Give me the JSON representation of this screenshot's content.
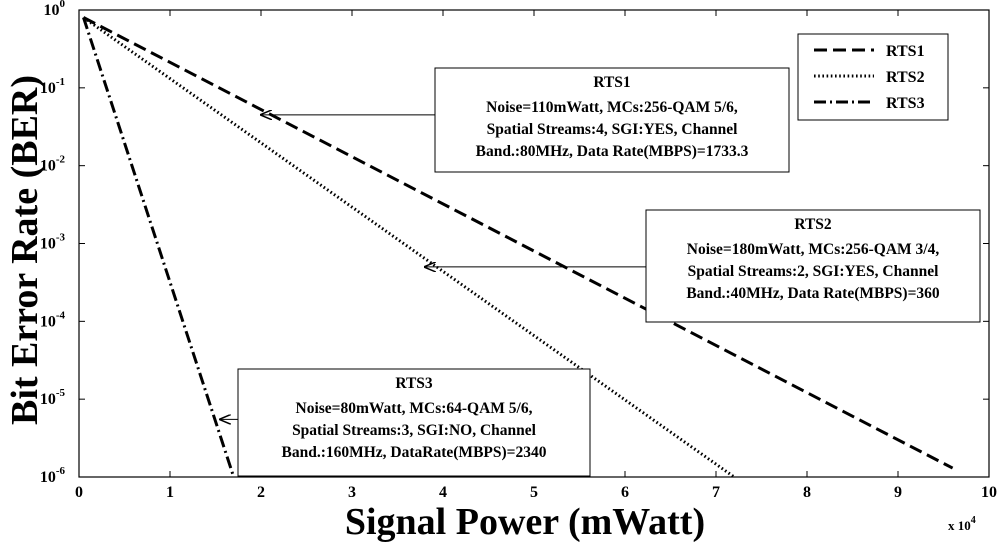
{
  "chart_data": {
    "type": "line",
    "xlabel": "Signal Power (mWatt)",
    "ylabel": "Bit Error Rate (BER)",
    "x_multiplier_label": "x 10",
    "x_multiplier_exponent": "4",
    "xlim": [
      0,
      100000
    ],
    "ylim": [
      1e-06,
      1
    ],
    "y_scale": "log",
    "grid": false,
    "legend_position": "top-right",
    "x_ticks": [
      {
        "value": 0,
        "label": "0"
      },
      {
        "value": 10000,
        "label": "1"
      },
      {
        "value": 20000,
        "label": "2"
      },
      {
        "value": 30000,
        "label": "3"
      },
      {
        "value": 40000,
        "label": "4"
      },
      {
        "value": 50000,
        "label": "5"
      },
      {
        "value": 60000,
        "label": "6"
      },
      {
        "value": 70000,
        "label": "7"
      },
      {
        "value": 80000,
        "label": "8"
      },
      {
        "value": 90000,
        "label": "9"
      },
      {
        "value": 100000,
        "label": "10"
      }
    ],
    "y_ticks": [
      {
        "value": 1,
        "base": "10",
        "exp": "0"
      },
      {
        "value": 0.1,
        "base": "10",
        "exp": "-1"
      },
      {
        "value": 0.01,
        "base": "10",
        "exp": "-2"
      },
      {
        "value": 0.001,
        "base": "10",
        "exp": "-3"
      },
      {
        "value": 0.0001,
        "base": "10",
        "exp": "-4"
      },
      {
        "value": 1e-05,
        "base": "10",
        "exp": "-5"
      },
      {
        "value": 1e-06,
        "base": "10",
        "exp": "-6"
      }
    ],
    "series": [
      {
        "name": "RTS1",
        "style": "dashed",
        "x": [
          500,
          96000
        ],
        "y": [
          0.8,
          1.3e-06
        ]
      },
      {
        "name": "RTS2",
        "style": "dotted",
        "x": [
          500,
          72000
        ],
        "y": [
          0.8,
          1e-06
        ]
      },
      {
        "name": "RTS3",
        "style": "dashdot",
        "x": [
          500,
          17000
        ],
        "y": [
          0.8,
          1e-06
        ]
      }
    ],
    "annotations": [
      {
        "title": "RTS1",
        "lines": [
          "Noise=110mWatt, MCs:256-QAM 5/6,",
          "Spatial Streams:4, SGI:YES, Channel",
          "Band.:80MHz, Data Rate(MBPS)=1733.3"
        ],
        "arrow_to": {
          "x": 20000,
          "y": 0.045
        }
      },
      {
        "title": "RTS2",
        "lines": [
          "Noise=180mWatt, MCs:256-QAM 3/4,",
          "Spatial Streams:2, SGI:YES, Channel",
          "Band.:40MHz, Data Rate(MBPS)=360"
        ],
        "arrow_to": {
          "x": 38000,
          "y": 0.0005
        }
      },
      {
        "title": "RTS3",
        "lines": [
          "Noise=80mWatt, MCs:64-QAM 5/6,",
          "Spatial Streams:3, SGI:NO, Channel",
          "Band.:160MHz, DataRate(MBPS)=2340"
        ],
        "arrow_to": {
          "x": 15500,
          "y": 5.5e-06
        }
      }
    ]
  }
}
